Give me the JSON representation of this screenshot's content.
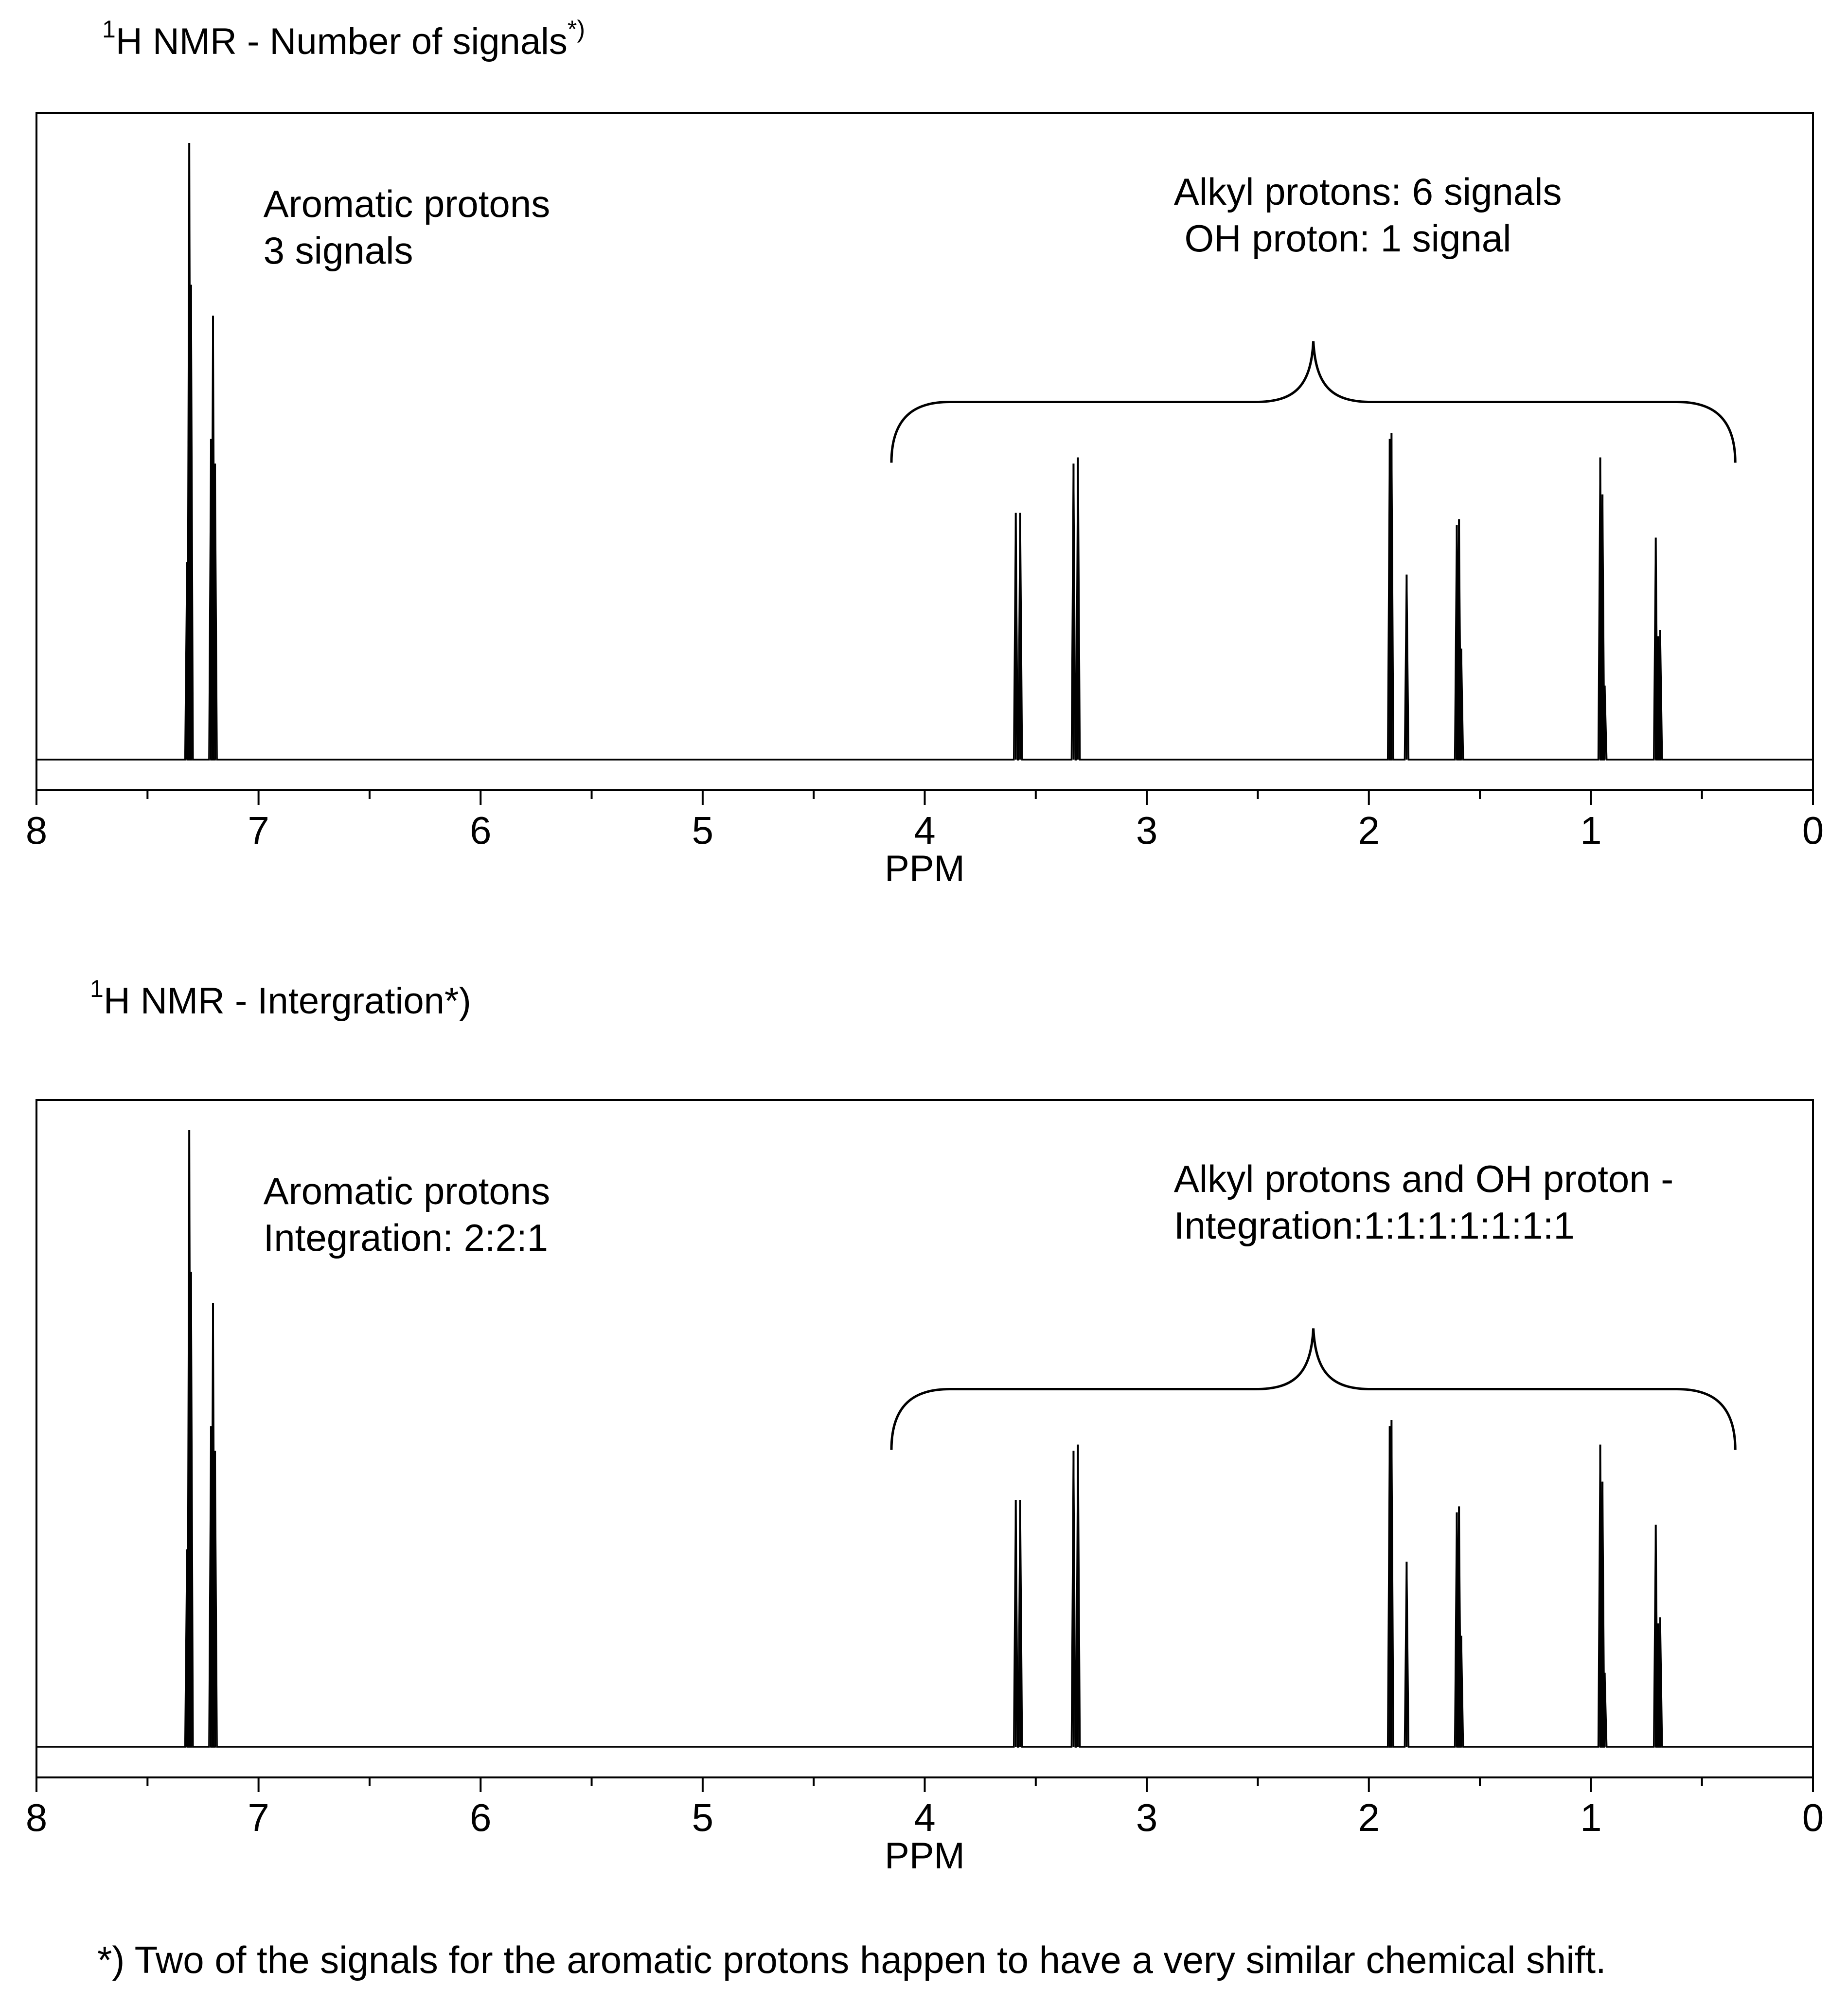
{
  "footnote": "*) Two of the signals  for the aromatic protons happen to have a very similar chemical shift.",
  "chart_data": [
    {
      "type": "line",
      "title_main": "H NMR - Number of signals",
      "title_sup_pre": "1",
      "title_sup_post": "*)",
      "xlabel": "PPM",
      "xlim": [
        8,
        0
      ],
      "xticks": [
        8,
        7,
        6,
        5,
        4,
        3,
        2,
        1,
        0
      ],
      "tick_labels": [
        "8",
        "7",
        "6",
        "5",
        "4",
        "3",
        "2",
        "1",
        "0"
      ],
      "minor_ticks": [
        7.5,
        6.5,
        5.5,
        4.5,
        3.5,
        2.5,
        1.5,
        0.5
      ],
      "ylim": [
        0,
        1.06
      ],
      "annotations": [
        {
          "lines": [
            "Aromatic protons",
            "3 signals"
          ],
          "x": 7.0,
          "y": 0.88,
          "anchor": "start"
        },
        {
          "lines": [
            "Alkyl protons: 6 signals",
            " OH proton: 1 signal"
          ],
          "x": 2.9,
          "y": 0.9,
          "anchor": "start"
        }
      ],
      "brace": {
        "x_start": 4.15,
        "x_end": 0.35,
        "y": 0.58
      },
      "peaks": [
        {
          "x": 7.322,
          "h": 0.32
        },
        {
          "x": 7.312,
          "h": 1.0
        },
        {
          "x": 7.304,
          "h": 0.77
        },
        {
          "x": 7.214,
          "h": 0.52
        },
        {
          "x": 7.205,
          "h": 0.72
        },
        {
          "x": 7.196,
          "h": 0.48
        },
        {
          "x": 3.59,
          "h": 0.4
        },
        {
          "x": 3.57,
          "h": 0.4
        },
        {
          "x": 3.33,
          "h": 0.48
        },
        {
          "x": 3.31,
          "h": 0.49
        },
        {
          "x": 1.906,
          "h": 0.52
        },
        {
          "x": 1.898,
          "h": 0.53
        },
        {
          "x": 1.83,
          "h": 0.3
        },
        {
          "x": 1.604,
          "h": 0.38
        },
        {
          "x": 1.594,
          "h": 0.39
        },
        {
          "x": 1.584,
          "h": 0.18
        },
        {
          "x": 0.958,
          "h": 0.49
        },
        {
          "x": 0.948,
          "h": 0.43
        },
        {
          "x": 0.938,
          "h": 0.12
        },
        {
          "x": 0.708,
          "h": 0.36
        },
        {
          "x": 0.698,
          "h": 0.2
        },
        {
          "x": 0.688,
          "h": 0.21
        }
      ]
    },
    {
      "type": "line",
      "title_main": "H NMR - Intergration*)",
      "title_sup_pre": "1",
      "title_sup_post": "",
      "xlabel": "PPM",
      "xlim": [
        8,
        0
      ],
      "xticks": [
        8,
        7,
        6,
        5,
        4,
        3,
        2,
        1,
        0
      ],
      "tick_labels": [
        "8",
        "7",
        "6",
        "5",
        "4",
        "3",
        "2",
        "1",
        "0"
      ],
      "minor_ticks": [
        7.5,
        6.5,
        5.5,
        4.5,
        3.5,
        2.5,
        1.5,
        0.5
      ],
      "ylim": [
        0,
        1.06
      ],
      "annotations": [
        {
          "lines": [
            "Aromatic protons",
            "Integration: 2:2:1"
          ],
          "x": 7.0,
          "y": 0.88,
          "anchor": "start"
        },
        {
          "lines": [
            "Alkyl protons and OH proton -",
            "Integration:1:1:1:1:1:1:1"
          ],
          "x": 2.9,
          "y": 0.9,
          "anchor": "start"
        }
      ],
      "brace": {
        "x_start": 4.15,
        "x_end": 0.35,
        "y": 0.58
      },
      "peaks": [
        {
          "x": 7.322,
          "h": 0.32
        },
        {
          "x": 7.312,
          "h": 1.0
        },
        {
          "x": 7.304,
          "h": 0.77
        },
        {
          "x": 7.214,
          "h": 0.52
        },
        {
          "x": 7.205,
          "h": 0.72
        },
        {
          "x": 7.196,
          "h": 0.48
        },
        {
          "x": 3.59,
          "h": 0.4
        },
        {
          "x": 3.57,
          "h": 0.4
        },
        {
          "x": 3.33,
          "h": 0.48
        },
        {
          "x": 3.31,
          "h": 0.49
        },
        {
          "x": 1.906,
          "h": 0.52
        },
        {
          "x": 1.898,
          "h": 0.53
        },
        {
          "x": 1.83,
          "h": 0.3
        },
        {
          "x": 1.604,
          "h": 0.38
        },
        {
          "x": 1.594,
          "h": 0.39
        },
        {
          "x": 1.584,
          "h": 0.18
        },
        {
          "x": 0.958,
          "h": 0.49
        },
        {
          "x": 0.948,
          "h": 0.43
        },
        {
          "x": 0.938,
          "h": 0.12
        },
        {
          "x": 0.708,
          "h": 0.36
        },
        {
          "x": 0.698,
          "h": 0.2
        },
        {
          "x": 0.688,
          "h": 0.21
        }
      ]
    }
  ]
}
